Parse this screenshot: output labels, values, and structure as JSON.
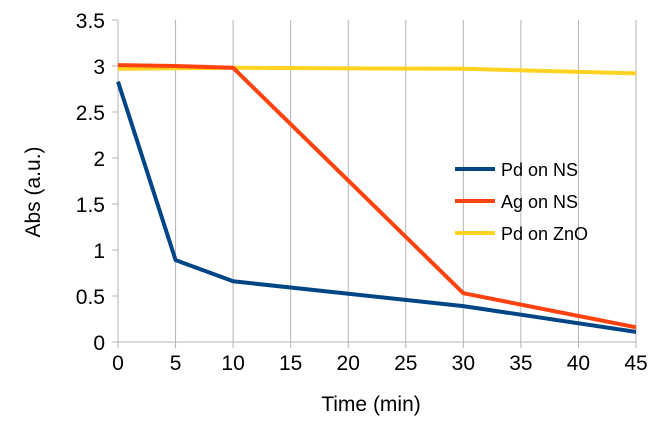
{
  "chart_data": {
    "type": "line",
    "title": "",
    "xlabel": "Time (min)",
    "ylabel": "Abs (a.u.)",
    "xlim": [
      0,
      45
    ],
    "ylim": [
      0,
      3.5
    ],
    "x_ticks": [
      "0",
      "5",
      "10",
      "15",
      "20",
      "25",
      "30",
      "35",
      "40",
      "45"
    ],
    "y_ticks": [
      "0",
      "0.5",
      "1",
      "1.5",
      "2",
      "2.5",
      "3",
      "3.5"
    ],
    "grid": "vertical",
    "legend_position": "right",
    "series": [
      {
        "name": "Pd on NS",
        "color": "#004586",
        "x": [
          0,
          5,
          10,
          30,
          45
        ],
        "y": [
          2.83,
          0.89,
          0.66,
          0.39,
          0.11
        ]
      },
      {
        "name": "Ag on NS",
        "color": "#ff420e",
        "x": [
          0,
          5,
          10,
          30,
          45
        ],
        "y": [
          3.01,
          3.0,
          2.98,
          0.53,
          0.16
        ]
      },
      {
        "name": "Pd on ZnO",
        "color": "#ffd320",
        "x": [
          0,
          10,
          30,
          45
        ],
        "y": [
          2.97,
          2.98,
          2.97,
          2.92
        ]
      }
    ]
  }
}
